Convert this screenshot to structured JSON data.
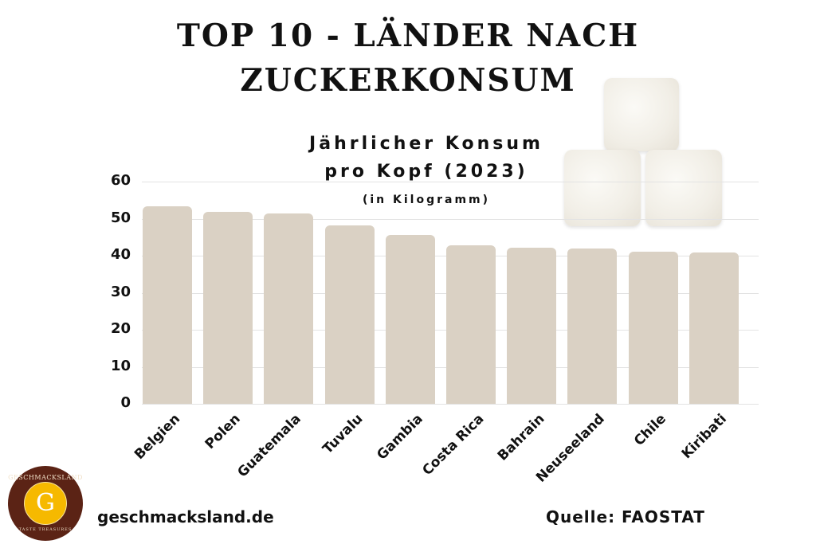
{
  "header": {
    "title_line1": "TOP 10 - LÄNDER NACH",
    "title_line2": "ZUCKERKONSUM",
    "subtitle_line1": "Jährlicher Konsum",
    "subtitle_line2": "pro Kopf (2023)",
    "unit": "(in Kilogramm)"
  },
  "footer": {
    "website": "geschmacksland.de",
    "source": "Quelle: FAOSTAT",
    "logo": {
      "top_text": "GESCHMACKSLAND",
      "center_letter": "G",
      "bottom_text": "TASTE TREASURES"
    }
  },
  "colors": {
    "bar": "#dad1c4",
    "grid": "#e3e3e3",
    "text": "#111111",
    "logo_outer": "#5b2315",
    "logo_inner": "#f6b900"
  },
  "decoration": {
    "image": "sugar-cubes"
  },
  "chart_data": {
    "type": "bar",
    "title": "TOP 10 - LÄNDER NACH ZUCKERKONSUM",
    "subtitle": "Jährlicher Konsum pro Kopf (2023) (in Kilogramm)",
    "xlabel": "",
    "ylabel": "",
    "categories": [
      "Belgien",
      "Polen",
      "Guatemala",
      "Tuvalu",
      "Gambia",
      "Costa Rica",
      "Bahrain",
      "Neuseeland",
      "Chile",
      "Kiribati"
    ],
    "values": [
      53.3,
      51.8,
      51.4,
      48.2,
      45.6,
      42.8,
      42.2,
      41.9,
      41.1,
      40.9
    ],
    "ylim": [
      0,
      60
    ],
    "yticks": [
      "0",
      "10",
      "20",
      "30",
      "40",
      "50",
      "60"
    ],
    "grid": true,
    "legend": null,
    "source": "FAOSTAT"
  }
}
